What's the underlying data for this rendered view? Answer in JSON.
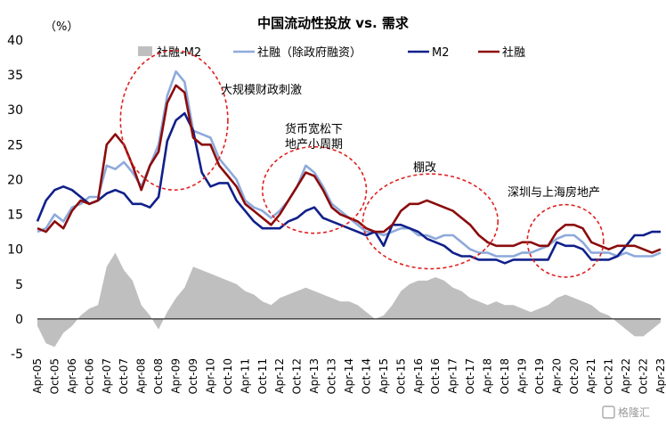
{
  "chart_data": {
    "type": "line",
    "title": "中国流动性投放 vs. 需求",
    "unit_label": "（%）",
    "ylim": [
      -5,
      40
    ],
    "yticks": [
      40,
      35,
      30,
      25,
      20,
      15,
      10,
      5,
      0,
      -5
    ],
    "x_tick_labels": [
      "Apr-05",
      "Oct-05",
      "Apr-06",
      "Oct-06",
      "Apr-07",
      "Oct-07",
      "Apr-08",
      "Oct-08",
      "Apr-09",
      "Oct-09",
      "Apr-10",
      "Oct-10",
      "Apr-11",
      "Oct-11",
      "Apr-12",
      "Oct-12",
      "Apr-13",
      "Oct-13",
      "Apr-14",
      "Oct-14",
      "Apr-15",
      "Oct-15",
      "Apr-16",
      "Oct-16",
      "Apr-17",
      "Oct-17",
      "Apr-18",
      "Oct-18",
      "Apr-19",
      "Oct-19",
      "Apr-20",
      "Oct-20",
      "Apr-21",
      "Oct-21",
      "Apr-22",
      "Oct-22",
      "Apr-23"
    ],
    "x_start": 2005.25,
    "x_end": 2023.25,
    "legend_position": "top",
    "series": [
      {
        "name": "社融-M2",
        "kind": "area",
        "color": "#bfbfbf",
        "x": [
          2005.25,
          2005.5,
          2005.75,
          2006.0,
          2006.25,
          2006.5,
          2006.75,
          2007.0,
          2007.25,
          2007.5,
          2007.75,
          2008.0,
          2008.25,
          2008.5,
          2008.75,
          2009.0,
          2009.25,
          2009.5,
          2009.75,
          2010.0,
          2010.25,
          2010.5,
          2010.75,
          2011.0,
          2011.25,
          2011.5,
          2011.75,
          2012.0,
          2012.25,
          2012.5,
          2012.75,
          2013.0,
          2013.25,
          2013.5,
          2013.75,
          2014.0,
          2014.25,
          2014.5,
          2014.75,
          2015.0,
          2015.25,
          2015.5,
          2015.75,
          2016.0,
          2016.25,
          2016.5,
          2016.75,
          2017.0,
          2017.25,
          2017.5,
          2017.75,
          2018.0,
          2018.25,
          2018.5,
          2018.75,
          2019.0,
          2019.25,
          2019.5,
          2019.75,
          2020.0,
          2020.25,
          2020.5,
          2020.75,
          2021.0,
          2021.25,
          2021.5,
          2021.75,
          2022.0,
          2022.25,
          2022.5,
          2022.75,
          2023.0,
          2023.25
        ],
        "y": [
          -1.0,
          -3.5,
          -4.0,
          -2.0,
          -1.0,
          0.5,
          1.5,
          2.0,
          7.5,
          9.5,
          7.0,
          5.5,
          2.0,
          0.5,
          -1.5,
          1.0,
          3.0,
          4.5,
          7.5,
          7.0,
          6.5,
          6.0,
          5.5,
          5.0,
          4.0,
          3.5,
          2.5,
          2.0,
          3.0,
          3.5,
          4.0,
          4.5,
          4.0,
          3.5,
          3.0,
          2.5,
          2.5,
          2.0,
          1.0,
          0.0,
          0.5,
          2.0,
          4.0,
          5.0,
          5.5,
          5.5,
          6.0,
          5.5,
          4.5,
          4.0,
          3.0,
          2.5,
          2.0,
          2.5,
          2.0,
          2.0,
          1.5,
          1.0,
          1.5,
          2.0,
          3.0,
          3.5,
          3.0,
          2.5,
          2.0,
          1.0,
          0.5,
          -0.5,
          -1.5,
          -2.5,
          -2.5,
          -1.5,
          -0.5
        ]
      },
      {
        "name": "社融（除政府融资）",
        "kind": "line",
        "color": "#8eaadb",
        "x": [
          2005.25,
          2005.5,
          2005.75,
          2006.0,
          2006.25,
          2006.5,
          2006.75,
          2007.0,
          2007.25,
          2007.5,
          2007.75,
          2008.0,
          2008.25,
          2008.5,
          2008.75,
          2009.0,
          2009.25,
          2009.5,
          2009.75,
          2010.0,
          2010.25,
          2010.5,
          2010.75,
          2011.0,
          2011.25,
          2011.5,
          2011.75,
          2012.0,
          2012.25,
          2012.5,
          2012.75,
          2013.0,
          2013.25,
          2013.5,
          2013.75,
          2014.0,
          2014.25,
          2014.5,
          2014.75,
          2015.0,
          2015.25,
          2015.5,
          2015.75,
          2016.0,
          2016.25,
          2016.5,
          2016.75,
          2017.0,
          2017.25,
          2017.5,
          2017.75,
          2018.0,
          2018.25,
          2018.5,
          2018.75,
          2019.0,
          2019.25,
          2019.5,
          2019.75,
          2020.0,
          2020.25,
          2020.5,
          2020.75,
          2021.0,
          2021.25,
          2021.5,
          2021.75,
          2022.0,
          2022.25,
          2022.5,
          2022.75,
          2023.0,
          2023.25
        ],
        "y": [
          12.5,
          13.0,
          15.0,
          14.0,
          16.0,
          16.5,
          17.5,
          17.5,
          22.0,
          21.5,
          22.5,
          21.0,
          19.0,
          22.0,
          25.0,
          32.0,
          35.5,
          34.0,
          27.0,
          26.5,
          26.0,
          23.0,
          21.5,
          20.0,
          17.0,
          16.0,
          15.5,
          14.5,
          15.5,
          17.0,
          19.0,
          22.0,
          21.0,
          19.0,
          16.5,
          15.5,
          14.5,
          13.5,
          12.5,
          12.5,
          12.0,
          12.5,
          13.0,
          13.0,
          12.0,
          12.0,
          11.5,
          12.0,
          12.0,
          11.0,
          10.0,
          9.5,
          9.5,
          9.0,
          9.0,
          9.0,
          9.5,
          9.5,
          10.0,
          10.5,
          11.5,
          12.0,
          12.0,
          11.0,
          9.5,
          9.5,
          9.5,
          9.0,
          9.5,
          9.0,
          9.0,
          9.0,
          9.5
        ]
      },
      {
        "name": "M2",
        "kind": "line",
        "color": "#10208a",
        "x": [
          2005.25,
          2005.5,
          2005.75,
          2006.0,
          2006.25,
          2006.5,
          2006.75,
          2007.0,
          2007.25,
          2007.5,
          2007.75,
          2008.0,
          2008.25,
          2008.5,
          2008.75,
          2009.0,
          2009.25,
          2009.5,
          2009.75,
          2010.0,
          2010.25,
          2010.5,
          2010.75,
          2011.0,
          2011.25,
          2011.5,
          2011.75,
          2012.0,
          2012.25,
          2012.5,
          2012.75,
          2013.0,
          2013.25,
          2013.5,
          2013.75,
          2014.0,
          2014.25,
          2014.5,
          2014.75,
          2015.0,
          2015.25,
          2015.5,
          2015.75,
          2016.0,
          2016.25,
          2016.5,
          2016.75,
          2017.0,
          2017.25,
          2017.5,
          2017.75,
          2018.0,
          2018.25,
          2018.5,
          2018.75,
          2019.0,
          2019.25,
          2019.5,
          2019.75,
          2020.0,
          2020.25,
          2020.5,
          2020.75,
          2021.0,
          2021.25,
          2021.5,
          2021.75,
          2022.0,
          2022.25,
          2022.5,
          2022.75,
          2023.0,
          2023.25
        ],
        "y": [
          14.0,
          17.0,
          18.5,
          19.0,
          18.5,
          17.5,
          16.5,
          17.0,
          18.0,
          18.5,
          18.0,
          16.5,
          16.5,
          16.0,
          17.5,
          25.5,
          28.5,
          29.5,
          27.0,
          21.0,
          19.0,
          19.5,
          19.5,
          17.0,
          15.5,
          14.0,
          13.0,
          13.0,
          13.0,
          14.0,
          14.5,
          15.5,
          16.0,
          14.5,
          14.0,
          13.5,
          13.0,
          12.5,
          12.0,
          12.5,
          10.5,
          13.5,
          13.5,
          13.0,
          12.5,
          11.5,
          11.0,
          10.5,
          9.5,
          9.0,
          9.0,
          8.5,
          8.5,
          8.5,
          8.0,
          8.5,
          8.5,
          8.5,
          8.5,
          8.5,
          11.0,
          10.5,
          10.5,
          10.0,
          8.5,
          8.5,
          8.5,
          9.0,
          10.5,
          12.0,
          12.0,
          12.5,
          12.5
        ]
      },
      {
        "name": "社融",
        "kind": "line",
        "color": "#8b0c0c",
        "x": [
          2005.25,
          2005.5,
          2005.75,
          2006.0,
          2006.25,
          2006.5,
          2006.75,
          2007.0,
          2007.25,
          2007.5,
          2007.75,
          2008.0,
          2008.25,
          2008.5,
          2008.75,
          2009.0,
          2009.25,
          2009.5,
          2009.75,
          2010.0,
          2010.25,
          2010.5,
          2010.75,
          2011.0,
          2011.25,
          2011.5,
          2011.75,
          2012.0,
          2012.25,
          2012.5,
          2012.75,
          2013.0,
          2013.25,
          2013.5,
          2013.75,
          2014.0,
          2014.25,
          2014.5,
          2014.75,
          2015.0,
          2015.25,
          2015.5,
          2015.75,
          2016.0,
          2016.25,
          2016.5,
          2016.75,
          2017.0,
          2017.25,
          2017.5,
          2017.75,
          2018.0,
          2018.25,
          2018.5,
          2018.75,
          2019.0,
          2019.25,
          2019.5,
          2019.75,
          2020.0,
          2020.25,
          2020.5,
          2020.75,
          2021.0,
          2021.25,
          2021.5,
          2021.75,
          2022.0,
          2022.25,
          2022.5,
          2022.75,
          2023.0,
          2023.25
        ],
        "y": [
          13.0,
          12.5,
          14.0,
          13.0,
          15.5,
          17.0,
          16.5,
          17.0,
          25.0,
          26.5,
          25.0,
          22.0,
          18.5,
          22.0,
          24.0,
          31.0,
          33.5,
          32.5,
          26.0,
          25.0,
          25.0,
          22.0,
          20.5,
          19.0,
          16.5,
          15.5,
          14.5,
          13.5,
          15.0,
          17.0,
          19.0,
          21.0,
          20.5,
          18.5,
          16.0,
          15.0,
          14.5,
          14.0,
          13.0,
          12.5,
          12.5,
          13.5,
          15.5,
          16.5,
          16.5,
          17.0,
          16.5,
          16.0,
          15.5,
          14.5,
          13.5,
          12.0,
          11.0,
          10.5,
          10.5,
          10.5,
          11.0,
          11.0,
          10.5,
          10.5,
          12.5,
          13.5,
          13.5,
          13.0,
          11.0,
          10.5,
          10.0,
          10.5,
          10.5,
          10.5,
          10.0,
          9.5,
          10.0
        ]
      }
    ],
    "annotations": [
      {
        "text": "大规模财政刺激",
        "ellipse": {
          "cx": 2009.2,
          "cy": 28.5,
          "rx": 1.55,
          "ry": 10.0
        }
      },
      {
        "text": "货币宽松下",
        "text2": "地产小周期",
        "ellipse": {
          "cx": 2013.25,
          "cy": 18.5,
          "rx": 1.5,
          "ry": 6.2
        }
      },
      {
        "text": "棚改",
        "ellipse": {
          "cx": 2016.6,
          "cy": 14.0,
          "rx": 1.95,
          "ry": 6.8
        }
      },
      {
        "text": "深圳与上海房地产",
        "ellipse": {
          "cx": 2020.5,
          "cy": 11.2,
          "rx": 1.1,
          "ry": 5.2
        }
      }
    ]
  },
  "watermark": "格隆汇"
}
